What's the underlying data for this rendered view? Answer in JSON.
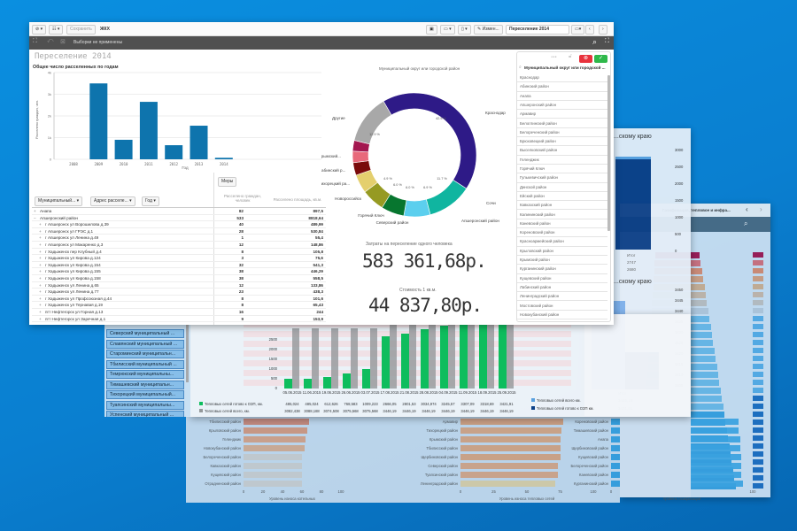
{
  "toolbar": {
    "save_label": "Сохранить",
    "app_name": "ЖКХ",
    "edit_label": "Измен...",
    "sheet_name": "Переселение 2014",
    "selections_label": "Выборки не применены"
  },
  "sheet_title": "Переселение 2014",
  "bar_chart": {
    "type": "bar",
    "title": "Общее число расселенных по годам",
    "xlabel": "Год",
    "ylabel": "Расселено граждан, чел.",
    "categories": [
      "2008",
      "2009",
      "2010",
      "2011",
      "2012",
      "2013",
      "2014"
    ],
    "values": [
      0,
      3500,
      900,
      2650,
      650,
      1550,
      70
    ],
    "yticks": [
      "0",
      "1k",
      "2k",
      "3k",
      "4k"
    ],
    "ylim": [
      0,
      4000
    ],
    "color": "#0e74ad"
  },
  "table": {
    "filters": [
      "Муниципальный...",
      "Адрес расселе...",
      "Год"
    ],
    "measures_button": "Меры",
    "headers": [
      "Расселено граждан, человек",
      "Расселено площадь, кв.м."
    ],
    "rows": [
      {
        "name": "Анапа",
        "v1": "82",
        "v2": "897,5",
        "toggle": "+"
      },
      {
        "name": "Апшеронский район",
        "v1": "533",
        "v2": "8818,64",
        "toggle": "−"
      },
      {
        "name": "г Апшеронск ул Ворошилова д.39",
        "v1": "40",
        "v2": "489,99",
        "toggle": "+"
      },
      {
        "name": "г Апшеронск ул ГРЭС д.1",
        "v1": "28",
        "v2": "530,84",
        "toggle": "+"
      },
      {
        "name": "г Апшеронск ул Ленина д.49",
        "v1": "1",
        "v2": "55,4",
        "toggle": "+"
      },
      {
        "name": "г Апшеронск ул Макаренко д.3",
        "v1": "12",
        "v2": "148,86",
        "toggle": "+"
      },
      {
        "name": "г Хадыженск пер Клубный д.4",
        "v1": "8",
        "v2": "105,8",
        "toggle": "+"
      },
      {
        "name": "г Хадыженск ул Кирова д.124",
        "v1": "3",
        "v2": "75,6",
        "toggle": "+"
      },
      {
        "name": "г Хадыженск ул Кирова д.154",
        "v1": "32",
        "v2": "541,3",
        "toggle": "+"
      },
      {
        "name": "г Хадыженск ул Кирова д.155",
        "v1": "38",
        "v2": "446,29",
        "toggle": "+"
      },
      {
        "name": "г Хадыженск ул Кирова д.158",
        "v1": "38",
        "v2": "558,5",
        "toggle": "+"
      },
      {
        "name": "г Хадыженск ул Ленина д.65",
        "v1": "12",
        "v2": "133,86",
        "toggle": "+"
      },
      {
        "name": "г Хадыженск ул Ленина д.77",
        "v1": "23",
        "v2": "438,3",
        "toggle": "+"
      },
      {
        "name": "г Хадыженск ул Профсоюзная д.44",
        "v1": "8",
        "v2": "101,6",
        "toggle": "+"
      },
      {
        "name": "г Хадыженск ул Тернавая д.19",
        "v1": "8",
        "v2": "65,43",
        "toggle": "+"
      },
      {
        "name": "пгт Нефтегорск ул Горная д.13",
        "v1": "16",
        "v2": "244",
        "toggle": "+"
      },
      {
        "name": "пгт Нефтегорск ул Заречная д.1",
        "v1": "9",
        "v2": "153,9",
        "toggle": "+"
      }
    ]
  },
  "donut": {
    "type": "pie",
    "title": "Муниципальный округ или городской район",
    "slices": [
      {
        "label": "Краснодар",
        "value": 42.5,
        "pct": "42.5 %",
        "color": "#2e1a87"
      },
      {
        "label": "Сочи",
        "value": 11.7,
        "pct": "11.7 %",
        "color": "#10b5a0"
      },
      {
        "label": "Апшеронский район",
        "value": 6.9,
        "pct": "6.9 %",
        "color": "#5ccfee"
      },
      {
        "label": "Северский район",
        "value": 6.0,
        "pct": "6.0 %",
        "color": "#07762f"
      },
      {
        "label": "Горячий Ключ",
        "value": 6.0,
        "pct": "6.0 %",
        "color": "#969a22"
      },
      {
        "label": "Новороссийск",
        "value": 4.9,
        "pct": "4.9 %",
        "color": "#e4cf6e"
      },
      {
        "label": "Тихорецкий ра...",
        "value": 3.3,
        "pct": "",
        "color": "#7a0b0b"
      },
      {
        "label": "Лабинский р...",
        "value": 3.0,
        "pct": "",
        "color": "#e8697b"
      },
      {
        "label": "Крымский...",
        "value": 2.8,
        "pct": "",
        "color": "#a3174f"
      },
      {
        "label": "Другие",
        "value": 12.9,
        "pct": "12.9 %",
        "color": "#a8a8a8"
      }
    ]
  },
  "kpi1": {
    "label": "Затраты на переселение одного человека",
    "value": "583 361,68р."
  },
  "kpi2": {
    "label": "Стоимость 1 кв.м.",
    "value": "44 837,80р."
  },
  "listbox": {
    "title": "Муниципальный округ или городской ...",
    "items": [
      "Краснодар",
      "Абинский район",
      "Анапа",
      "Апшеронский район",
      "Армавир",
      "Белоглинский район",
      "Белореченский район",
      "Брюховецкий район",
      "Выселковский район",
      "Геленджик",
      "Горячий Ключ",
      "Гулькевичский район",
      "Динской район",
      "Ейский район",
      "Кавказский район",
      "Калининский район",
      "Каневский район",
      "Кореновский район",
      "Красноармейский район",
      "Крыловский район",
      "Крымский район",
      "Курганинский район",
      "Кущевский район",
      "Лабинский район",
      "Ленинградский район",
      "Мостовский район",
      "Новокубанский район"
    ],
    "cancel_color": "#e8323c",
    "confirm_color": "#2fb84a"
  },
  "bg_buttons": [
    "Северский муниципальный ...",
    "Славянский муниципальный ...",
    "Староминский муниципальн...",
    "Тбилисский муниципальный ...",
    "Темрюкский муниципальны...",
    "Тимашевский муниципальн...",
    "Тихорецкий муниципальный...",
    "Туапсинский муниципальны...",
    "Успенский муниципальный ..."
  ],
  "heat_chart": {
    "type": "bar",
    "yticks": [
      "0",
      "500",
      "1000",
      "1500",
      "2000",
      "2500"
    ],
    "ylim": [
      0,
      2500
    ],
    "dates": [
      "05.06.2015",
      "11.06.2015",
      "19.06.2015",
      "26.06.2015",
      "03.07.2015",
      "17.08.2015",
      "21.08.2015",
      "28.08.2015",
      "04.09.2015",
      "11.09.2015",
      "18.09.2015",
      "25.09.2015"
    ],
    "series": [
      {
        "name": "Тепловых сетей готово к ОЗП, км.",
        "color": "#0fc05a",
        "values": [
          "485,024",
          "485,024",
          "612,626",
          "768,583",
          "1009,223",
          "2666,05",
          "2801,53",
          "3034,974",
          "3245,57",
          "3307,09",
          "3318,69",
          "3421,91"
        ],
        "num": [
          485,
          485,
          612,
          768,
          1009,
          2666,
          2801,
          3035,
          3245,
          3307,
          3318,
          3421
        ]
      },
      {
        "name": "Тепловых сетей всего, км.",
        "color": "#999999",
        "values": [
          "3082,438",
          "3088,188",
          "3074,508",
          "3075,568",
          "3075,568",
          "3446,19",
          "3446,19",
          "3446,19",
          "3446,19",
          "3446,19",
          "3446,19",
          "3446,19"
        ],
        "num": [
          3082,
          3088,
          3074,
          3075,
          3075,
          3446,
          3446,
          3446,
          3446,
          3446,
          3446,
          3446
        ]
      }
    ],
    "legend": [
      "Тепловых сетей всего км.",
      "Тепловых сетей готово к ОЗП км."
    ],
    "total_label": "Итог",
    "totals": [
      "3446,19",
      "3421,91"
    ]
  },
  "right_panel": {
    "title1": "...скому краю",
    "yticks1": [
      "3000",
      "2500",
      "2000",
      "1500",
      "1000",
      "500",
      "0"
    ],
    "total_label": "Итог",
    "totals1": [
      "2747",
      "2680"
    ],
    "title2": "...скому краю",
    "yticks2": [
      "3450",
      "3445",
      "3440",
      "3435",
      "3430",
      "3425",
      "3420",
      "3415",
      "3410",
      "3405"
    ]
  },
  "back_window": {
    "sheet_name": "Газификация, тепловое и инфра..."
  },
  "bottom_charts": [
    {
      "xlabel": "Уровень износа котельных",
      "ticks": [
        "0",
        "20",
        "40",
        "60",
        "80",
        "100"
      ],
      "max": 100,
      "labels": [
        "Тбилисский район",
        "Крыловский район",
        "Геленджик",
        "Новокубанский район",
        "Белореченский район",
        "Кавказский район",
        "Кущевский район",
        "Отрадненский район"
      ],
      "values": [
        67,
        65,
        64,
        63,
        60,
        60,
        60,
        60
      ]
    },
    {
      "xlabel": "Уровень износа тепловых сетей",
      "ticks": [
        "0",
        "25",
        "50",
        "75",
        "100"
      ],
      "max": 100,
      "labels": [
        "Армавир",
        "Тихорецкий район",
        "Крымский район",
        "Тбилисский район",
        "Щербиновский район",
        "Северский район",
        "Туапсинский район",
        "Ленинградский район"
      ],
      "values": [
        77,
        76,
        75,
        75,
        75,
        73,
        73,
        71
      ]
    },
    {
      "xlabel": "Уровень газификации",
      "ticks": [
        "0",
        "50",
        "100"
      ],
      "max": 100,
      "labels": [
        "Кореновский район",
        "Тимашевский район",
        "Анапа",
        "Щербиновский район",
        "Кущевский район",
        "Белореченский район",
        "Каневский район",
        "Курганинский район"
      ],
      "values": [
        90,
        90,
        91,
        91,
        92,
        92,
        92,
        93
      ]
    }
  ]
}
